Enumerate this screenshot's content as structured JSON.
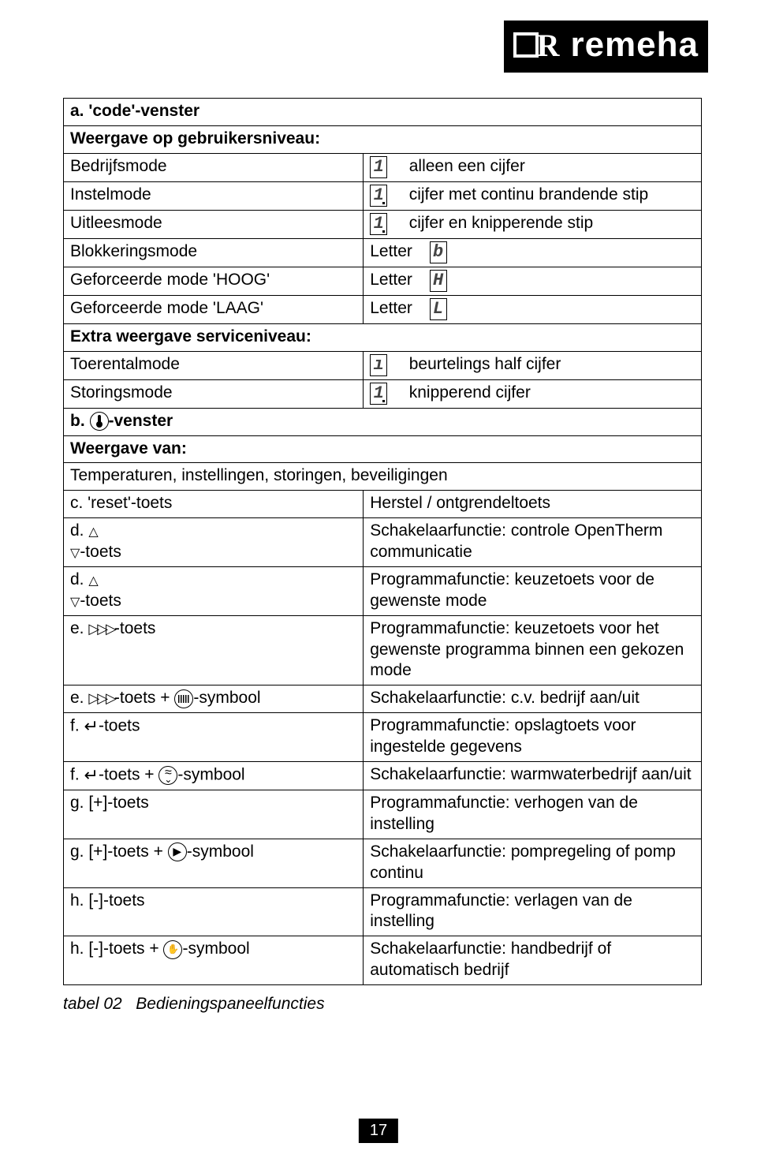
{
  "logo": {
    "brand": "remeha"
  },
  "sections": {
    "a_title": "a. 'code'-venster",
    "a_sub": "Weergave op gebruikersniveau:",
    "rows_a": [
      {
        "label": "Bedrijfsmode",
        "desc": "alleen een cijfer",
        "seg": "1"
      },
      {
        "label": "Instelmode",
        "desc": "cijfer met continu brandende stip",
        "seg": "1",
        "dot": true
      },
      {
        "label": "Uitleesmode",
        "desc": "cijfer en knipperende stip",
        "seg": "1",
        "dot": true
      },
      {
        "label": "Blokkeringsmode",
        "desc": "Letter",
        "seg": "b"
      },
      {
        "label": "Geforceerde mode 'HOOG'",
        "desc": "Letter",
        "seg": "H"
      },
      {
        "label": "Geforceerde mode 'LAAG'",
        "desc": "Letter",
        "seg": "L"
      }
    ],
    "extra_title": "Extra weergave serviceniveau:",
    "rows_extra": [
      {
        "label": "Toerentalmode",
        "desc": "beurtelings half cijfer",
        "seg": "ı"
      },
      {
        "label": "Storingsmode",
        "desc": "knipperend cijfer",
        "seg": "1",
        "dot": true
      }
    ],
    "b_title": "b. ",
    "b_suffix": "-venster",
    "b_sub": "Weergave van:",
    "b_text": "Temperaturen, instellingen, storingen, beveiligingen",
    "rows_funcs": [
      {
        "label": "c. 'reset'-toets",
        "desc": "Herstel / ontgrendeltoets"
      },
      {
        "label_prefix": "d. ",
        "sym": "updown",
        "label_suffix": "-toets",
        "desc": "Schakelaarfunctie: controle OpenTherm communicatie"
      },
      {
        "label_prefix": "d. ",
        "sym": "updown",
        "label_suffix": "-toets",
        "desc": "Programmafunctie: keuzetoets voor de gewenste mode"
      },
      {
        "label_prefix": "e. ",
        "sym": "tri",
        "label_suffix": "-toets",
        "desc": "Programmafunctie: keuzetoets voor het gewenste programma binnen een gekozen mode"
      },
      {
        "label_prefix": "e. ",
        "sym": "tri",
        "label_mid": "-toets + ",
        "sym2": "radiator",
        "label_suffix": "-symbool",
        "desc": "Schakelaarfunctie: c.v. bedrijf aan/uit"
      },
      {
        "label_prefix": "f. ",
        "sym": "enter",
        "label_suffix": "-toets",
        "desc": "Programmafunctie: opslagtoets voor ingestelde gegevens"
      },
      {
        "label_prefix": "f. ",
        "sym": "enter",
        "label_mid": "-toets + ",
        "sym2": "tap",
        "label_suffix": "-symbool",
        "desc": "Schakelaarfunctie: warmwaterbedrijf aan/uit"
      },
      {
        "label": "g. [+]-toets",
        "desc": "Programmafunctie: verhogen van de instelling"
      },
      {
        "label_prefix": "g. [+]-toets + ",
        "sym": "play_c",
        "label_suffix": "-symbool",
        "desc": "Schakelaarfunctie: pompregeling of pomp continu"
      },
      {
        "label": "h. [-]-toets",
        "desc": "Programmafunctie: verlagen van de instelling"
      },
      {
        "label_prefix": "h. [-]-toets + ",
        "sym": "hand",
        "label_suffix": "-symbool",
        "desc": "Schakelaarfunctie: handbedrijf of automatisch bedrijf"
      }
    ]
  },
  "caption": {
    "id": "tabel 02",
    "text": "Bedieningspaneelfuncties"
  },
  "pagenum": "17"
}
